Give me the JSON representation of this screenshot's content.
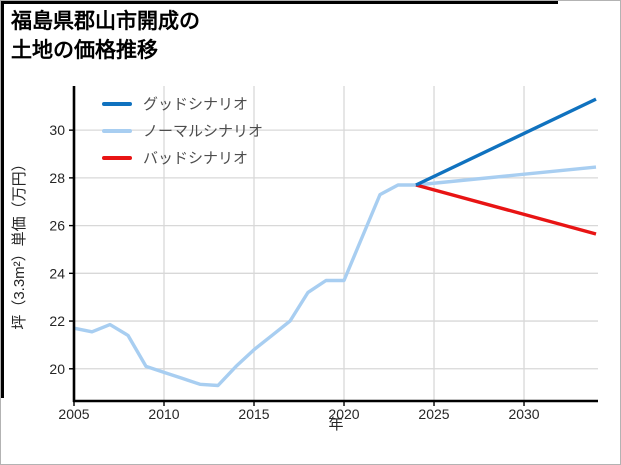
{
  "frame": {
    "border_color": "#b3b3b3",
    "accent_bar_color": "#000000"
  },
  "chart_data": {
    "type": "line",
    "title": "福島県郡山市開成の土地の価格推移",
    "title_lines": [
      "福島県郡山市開成の",
      "土地の価格推移"
    ],
    "xlabel": "年",
    "ylabel": "坪（3.3m²）単価（万円）",
    "x_ticks": [
      2005,
      2010,
      2015,
      2020,
      2025,
      2030
    ],
    "y_ticks": [
      20,
      22,
      24,
      26,
      28,
      30
    ],
    "x_range": [
      2005,
      2034.11
    ],
    "y_range": [
      18.65,
      31.85
    ],
    "grid": true,
    "grid_color": "#d8d8d8",
    "axis_color": "#000000",
    "tick_label_color": "#262626",
    "background_color": "#ffffff",
    "legend": {
      "position": "upper-left-inside",
      "text_color": "#4d4d4d",
      "entries": [
        "グッドシナリオ",
        "ノーマルシナリオ",
        "バッドシナリオ"
      ]
    },
    "series": [
      {
        "key": "good",
        "name": "グッドシナリオ",
        "color": "#1072bf",
        "x": [
          2024,
          2034
        ],
        "values": [
          27.7,
          31.3
        ]
      },
      {
        "key": "normal",
        "name": "ノーマルシナリオ",
        "color": "#a8cef1",
        "x": [
          2005,
          2006,
          2007,
          2008,
          2009,
          2010,
          2011,
          2012,
          2013,
          2014,
          2015,
          2016,
          2017,
          2018,
          2019,
          2020,
          2021,
          2022,
          2023,
          2024,
          2034
        ],
        "values": [
          21.7,
          21.55,
          21.85,
          21.4,
          20.1,
          19.85,
          19.6,
          19.35,
          19.3,
          20.1,
          20.8,
          21.4,
          22.0,
          23.2,
          23.7,
          23.7,
          25.5,
          27.3,
          27.7,
          27.7,
          28.45
        ]
      },
      {
        "key": "bad",
        "name": "バッドシナリオ",
        "color": "#e81414",
        "x": [
          2024,
          2034
        ],
        "values": [
          27.7,
          25.65
        ]
      }
    ]
  }
}
